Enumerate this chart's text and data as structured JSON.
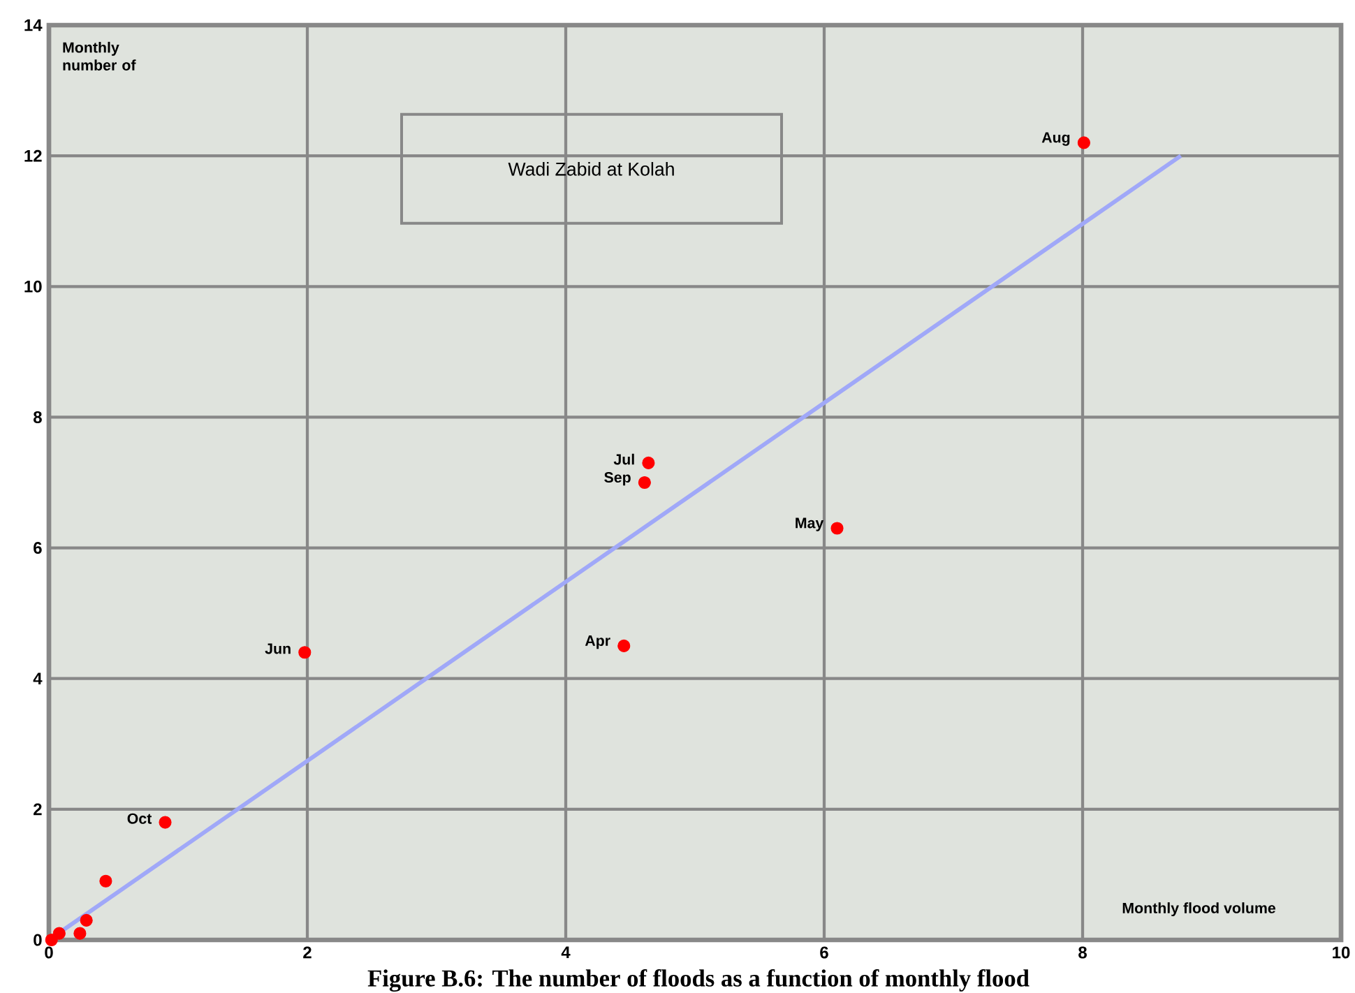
{
  "chart_data": {
    "type": "scatter",
    "title": "Wadi Zabid at Kolah",
    "xlabel": "Monthly flood volume",
    "ylabel": "Monthly number of",
    "xlim": [
      0,
      10
    ],
    "ylim": [
      0,
      14
    ],
    "xticks": [
      0,
      2,
      4,
      6,
      8,
      10
    ],
    "yticks": [
      0,
      2,
      4,
      6,
      8,
      10,
      12,
      14
    ],
    "grid": true,
    "series": [
      {
        "marker": "circle",
        "color": "#ff0000",
        "x": [
          8.01,
          4.64,
          4.61,
          6.1,
          4.45,
          1.98,
          0.9,
          0.44,
          0.29,
          0.24,
          0.08,
          0.02
        ],
        "values": [
          12.2,
          7.3,
          7.0,
          6.3,
          4.5,
          4.4,
          1.8,
          0.9,
          0.3,
          0.1,
          0.1,
          0.0
        ]
      },
      {
        "type": "line",
        "marker": "none",
        "color": "#a0a8f8",
        "line_style": "solid",
        "x": [
          0,
          8.76
        ],
        "values": [
          0,
          12
        ]
      }
    ],
    "annotations": [
      {
        "text": "Aug",
        "x": 8.01,
        "y": 12.2
      },
      {
        "text": "Jul",
        "x": 4.64,
        "y": 7.3
      },
      {
        "text": "Sep",
        "x": 4.61,
        "y": 7.0
      },
      {
        "text": "May",
        "x": 6.1,
        "y": 6.3
      },
      {
        "text": "Apr",
        "x": 4.45,
        "y": 4.5
      },
      {
        "text": "Jun",
        "x": 1.98,
        "y": 4.4
      },
      {
        "text": "Oct",
        "x": 0.9,
        "y": 1.8
      },
      "Figure B.6: The number of floods as a function of monthly flood"
    ]
  }
}
